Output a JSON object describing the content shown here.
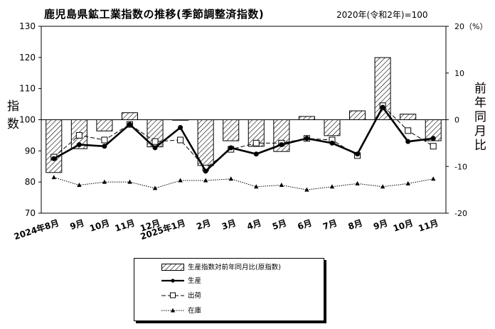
{
  "header": {
    "title": "鹿児島県鉱工業指数の推移(季節調整済指数)",
    "base_note": "2020年(令和2年)=100"
  },
  "axes": {
    "left_label": "指数",
    "right_label": "前年同月比",
    "right_unit": "20（%）"
  },
  "legend": {
    "bars": "生産指数対前年同月比(原指数)",
    "production": "生産",
    "shipments": "出荷",
    "inventory": "在庫"
  },
  "chart_data": {
    "type": "bar+line",
    "categories": [
      "2024年8月",
      "9月",
      "10月",
      "11月",
      "12月",
      "2025年1月",
      "2月",
      "3月",
      "4月",
      "5月",
      "6月",
      "7月",
      "8月",
      "9月",
      "10月",
      "11月"
    ],
    "left_axis": {
      "min": 70,
      "max": 130,
      "ticks": [
        70,
        80,
        90,
        100,
        110,
        120,
        130
      ]
    },
    "right_axis": {
      "min": -20,
      "max": 20,
      "ticks": [
        -20,
        -10,
        0,
        10
      ],
      "top_tick_label": "20（%）"
    },
    "series": [
      {
        "name": "生産指数対前年同月比(原指数)",
        "type": "bar",
        "axis": "right",
        "values": [
          -11.3,
          -6.2,
          -2.4,
          1.5,
          -5.8,
          -0.1,
          -9.8,
          -4.5,
          -5.7,
          -6.8,
          0.7,
          -3.4,
          1.9,
          13.3,
          1.2,
          -4.5
        ]
      },
      {
        "name": "生産",
        "type": "line",
        "axis": "left",
        "values": [
          87.5,
          92,
          91.5,
          98.5,
          91,
          97.5,
          83.5,
          91,
          89,
          92,
          94,
          92.5,
          89,
          104,
          93,
          94
        ]
      },
      {
        "name": "出荷",
        "type": "line",
        "axis": "left",
        "values": [
          88,
          95,
          93.5,
          98.5,
          93,
          93.5,
          84.5,
          90.5,
          92.5,
          92.5,
          94,
          93.5,
          88.5,
          104.5,
          96.5,
          91.5
        ]
      },
      {
        "name": "在庫",
        "type": "line",
        "axis": "left",
        "values": [
          81.5,
          79,
          80,
          80,
          78,
          80.5,
          80.5,
          81,
          78.5,
          79,
          77.5,
          78.5,
          79.5,
          78.5,
          79.5,
          81
        ]
      }
    ],
    "colors": {
      "bar_stroke": "#000000",
      "bar_fill": "#ffffff",
      "hatch": "#000000",
      "line": "#000000",
      "inventory_marker": "#000000"
    }
  }
}
